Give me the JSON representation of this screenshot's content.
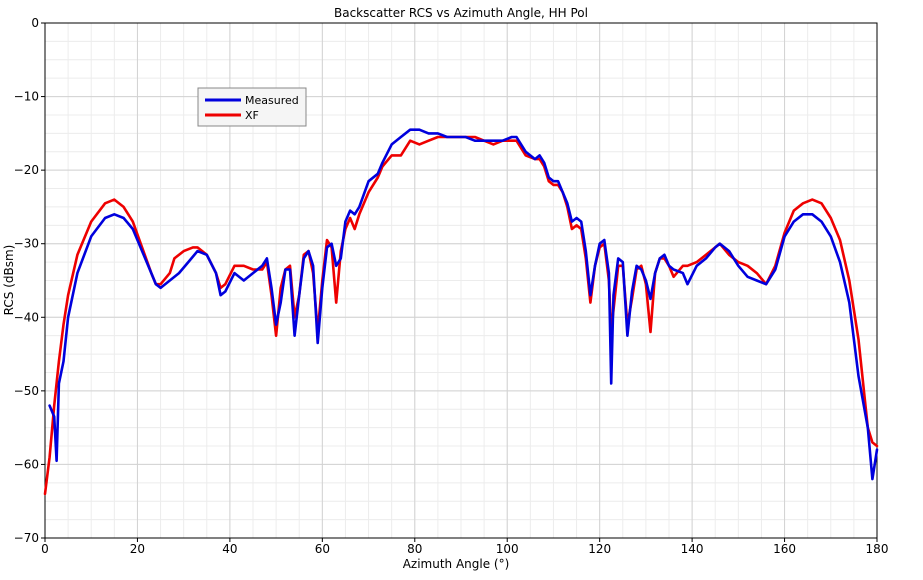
{
  "chart_data": {
    "type": "line",
    "title": "Backscatter RCS vs Azimuth Angle, HH Pol",
    "xlabel": "Azimuth Angle (°)",
    "ylabel": "RCS (dBsm)",
    "xlim": [
      0,
      180
    ],
    "ylim": [
      -70,
      0
    ],
    "xticks": [
      0,
      20,
      40,
      60,
      80,
      100,
      120,
      140,
      160,
      180
    ],
    "yticks": [
      0,
      -10,
      -20,
      -30,
      -40,
      -50,
      -60,
      -70
    ],
    "grid": true,
    "legend_position": "top-left",
    "series": [
      {
        "name": "Measured",
        "color": "#0000dd",
        "points": [
          [
            1,
            -52
          ],
          [
            2,
            -53.5
          ],
          [
            2.5,
            -59.5
          ],
          [
            3,
            -49
          ],
          [
            4,
            -46
          ],
          [
            5,
            -40
          ],
          [
            7,
            -34
          ],
          [
            10,
            -29
          ],
          [
            13,
            -26.5
          ],
          [
            15,
            -26
          ],
          [
            17,
            -26.5
          ],
          [
            19,
            -28
          ],
          [
            21,
            -31
          ],
          [
            23,
            -34
          ],
          [
            24,
            -35.5
          ],
          [
            25,
            -36
          ],
          [
            27,
            -35
          ],
          [
            29,
            -34
          ],
          [
            31,
            -32.5
          ],
          [
            33,
            -31
          ],
          [
            35,
            -31.5
          ],
          [
            37,
            -34
          ],
          [
            38,
            -37
          ],
          [
            39,
            -36.5
          ],
          [
            41,
            -34
          ],
          [
            43,
            -35
          ],
          [
            45,
            -34
          ],
          [
            47,
            -33
          ],
          [
            48,
            -32
          ],
          [
            49,
            -36
          ],
          [
            50,
            -41
          ],
          [
            51,
            -38
          ],
          [
            52,
            -33.5
          ],
          [
            53,
            -33.5
          ],
          [
            54,
            -42.5
          ],
          [
            55,
            -37
          ],
          [
            56,
            -32
          ],
          [
            57,
            -31
          ],
          [
            58,
            -33
          ],
          [
            59,
            -43.5
          ],
          [
            60,
            -36
          ],
          [
            61,
            -30.5
          ],
          [
            62,
            -30
          ],
          [
            63,
            -33
          ],
          [
            64,
            -32
          ],
          [
            65,
            -27
          ],
          [
            66,
            -25.5
          ],
          [
            67,
            -26
          ],
          [
            68,
            -25
          ],
          [
            70,
            -21.5
          ],
          [
            72,
            -20.5
          ],
          [
            73,
            -19
          ],
          [
            75,
            -16.5
          ],
          [
            77,
            -15.5
          ],
          [
            79,
            -14.5
          ],
          [
            81,
            -14.5
          ],
          [
            83,
            -15
          ],
          [
            85,
            -15
          ],
          [
            87,
            -15.5
          ],
          [
            89,
            -15.5
          ],
          [
            91,
            -15.5
          ],
          [
            93,
            -16
          ],
          [
            95,
            -16
          ],
          [
            97,
            -16
          ],
          [
            99,
            -16
          ],
          [
            101,
            -15.5
          ],
          [
            102,
            -15.5
          ],
          [
            103,
            -16.5
          ],
          [
            104,
            -17.5
          ],
          [
            106,
            -18.5
          ],
          [
            107,
            -18
          ],
          [
            108,
            -19
          ],
          [
            109,
            -21
          ],
          [
            110,
            -21.5
          ],
          [
            111,
            -21.5
          ],
          [
            112,
            -23
          ],
          [
            113,
            -24.5
          ],
          [
            114,
            -27
          ],
          [
            115,
            -26.5
          ],
          [
            116,
            -27
          ],
          [
            117,
            -31
          ],
          [
            118,
            -37
          ],
          [
            119,
            -33
          ],
          [
            120,
            -30
          ],
          [
            121,
            -29.5
          ],
          [
            122,
            -34
          ],
          [
            122.5,
            -49
          ],
          [
            123,
            -37
          ],
          [
            124,
            -32
          ],
          [
            125,
            -32.5
          ],
          [
            126,
            -42.5
          ],
          [
            127,
            -36.5
          ],
          [
            128,
            -33
          ],
          [
            129,
            -33.5
          ],
          [
            130,
            -35
          ],
          [
            131,
            -37.5
          ],
          [
            132,
            -34
          ],
          [
            133,
            -32
          ],
          [
            134,
            -31.5
          ],
          [
            135,
            -33
          ],
          [
            136,
            -33.5
          ],
          [
            138,
            -34
          ],
          [
            139,
            -35.5
          ],
          [
            141,
            -33
          ],
          [
            143,
            -32
          ],
          [
            145,
            -30.5
          ],
          [
            146,
            -30
          ],
          [
            148,
            -31
          ],
          [
            150,
            -33
          ],
          [
            152,
            -34.5
          ],
          [
            154,
            -35
          ],
          [
            156,
            -35.5
          ],
          [
            158,
            -33.5
          ],
          [
            160,
            -29
          ],
          [
            162,
            -27
          ],
          [
            164,
            -26
          ],
          [
            166,
            -26
          ],
          [
            168,
            -27
          ],
          [
            170,
            -29
          ],
          [
            172,
            -32.5
          ],
          [
            174,
            -38
          ],
          [
            176,
            -48
          ],
          [
            178,
            -55
          ],
          [
            179,
            -62
          ],
          [
            180,
            -58
          ]
        ]
      },
      {
        "name": "XF",
        "color": "#ee0000",
        "points": [
          [
            0,
            -64
          ],
          [
            1,
            -59
          ],
          [
            2,
            -52
          ],
          [
            3,
            -46
          ],
          [
            4,
            -41
          ],
          [
            5,
            -37
          ],
          [
            7,
            -31.5
          ],
          [
            10,
            -27
          ],
          [
            13,
            -24.5
          ],
          [
            15,
            -24
          ],
          [
            17,
            -25
          ],
          [
            19,
            -27
          ],
          [
            21,
            -30.5
          ],
          [
            23,
            -34
          ],
          [
            24,
            -35.5
          ],
          [
            25,
            -35.5
          ],
          [
            27,
            -34
          ],
          [
            28,
            -32
          ],
          [
            30,
            -31
          ],
          [
            32,
            -30.5
          ],
          [
            33,
            -30.5
          ],
          [
            35,
            -31.5
          ],
          [
            37,
            -34
          ],
          [
            38,
            -36
          ],
          [
            39,
            -35.5
          ],
          [
            41,
            -33
          ],
          [
            43,
            -33
          ],
          [
            45,
            -33.5
          ],
          [
            47,
            -33.5
          ],
          [
            48,
            -32.5
          ],
          [
            49,
            -37
          ],
          [
            50,
            -42.5
          ],
          [
            51,
            -36
          ],
          [
            52,
            -33.5
          ],
          [
            53,
            -33
          ],
          [
            54,
            -40
          ],
          [
            55,
            -37
          ],
          [
            56,
            -31.5
          ],
          [
            57,
            -31
          ],
          [
            58,
            -34
          ],
          [
            59,
            -42
          ],
          [
            60,
            -35
          ],
          [
            61,
            -29.5
          ],
          [
            62,
            -30.5
          ],
          [
            63,
            -38
          ],
          [
            64,
            -31
          ],
          [
            65,
            -28
          ],
          [
            66,
            -26.5
          ],
          [
            67,
            -28
          ],
          [
            68,
            -26
          ],
          [
            70,
            -23
          ],
          [
            72,
            -21
          ],
          [
            73,
            -19.5
          ],
          [
            75,
            -18
          ],
          [
            77,
            -18
          ],
          [
            79,
            -16
          ],
          [
            81,
            -16.5
          ],
          [
            83,
            -16
          ],
          [
            85,
            -15.5
          ],
          [
            87,
            -15.5
          ],
          [
            89,
            -15.5
          ],
          [
            91,
            -15.5
          ],
          [
            93,
            -15.5
          ],
          [
            95,
            -16
          ],
          [
            97,
            -16.5
          ],
          [
            99,
            -16
          ],
          [
            101,
            -16
          ],
          [
            102,
            -16
          ],
          [
            103,
            -17
          ],
          [
            104,
            -18
          ],
          [
            106,
            -18.5
          ],
          [
            107,
            -18.5
          ],
          [
            108,
            -19.5
          ],
          [
            109,
            -21.5
          ],
          [
            110,
            -22
          ],
          [
            111,
            -22
          ],
          [
            112,
            -23
          ],
          [
            113,
            -25
          ],
          [
            114,
            -28
          ],
          [
            115,
            -27.5
          ],
          [
            116,
            -28
          ],
          [
            117,
            -32
          ],
          [
            118,
            -38
          ],
          [
            119,
            -33
          ],
          [
            120,
            -30.5
          ],
          [
            121,
            -30
          ],
          [
            122,
            -35
          ],
          [
            122.5,
            -42
          ],
          [
            123,
            -39
          ],
          [
            124,
            -33
          ],
          [
            125,
            -33
          ],
          [
            126,
            -41
          ],
          [
            127,
            -37.5
          ],
          [
            128,
            -33.5
          ],
          [
            129,
            -33
          ],
          [
            130,
            -35.5
          ],
          [
            131,
            -42
          ],
          [
            132,
            -34
          ],
          [
            133,
            -32
          ],
          [
            134,
            -32
          ],
          [
            135,
            -33
          ],
          [
            136,
            -34.5
          ],
          [
            138,
            -33
          ],
          [
            139,
            -33
          ],
          [
            141,
            -32.5
          ],
          [
            143,
            -31.5
          ],
          [
            145,
            -30.5
          ],
          [
            146,
            -30
          ],
          [
            148,
            -31.5
          ],
          [
            150,
            -32.5
          ],
          [
            152,
            -33
          ],
          [
            154,
            -34
          ],
          [
            156,
            -35.5
          ],
          [
            158,
            -33
          ],
          [
            160,
            -28.5
          ],
          [
            162,
            -25.5
          ],
          [
            164,
            -24.5
          ],
          [
            166,
            -24
          ],
          [
            168,
            -24.5
          ],
          [
            170,
            -26.5
          ],
          [
            172,
            -29.5
          ],
          [
            174,
            -35
          ],
          [
            176,
            -43
          ],
          [
            178,
            -55
          ],
          [
            179,
            -57
          ],
          [
            180,
            -57.5
          ]
        ]
      }
    ]
  }
}
